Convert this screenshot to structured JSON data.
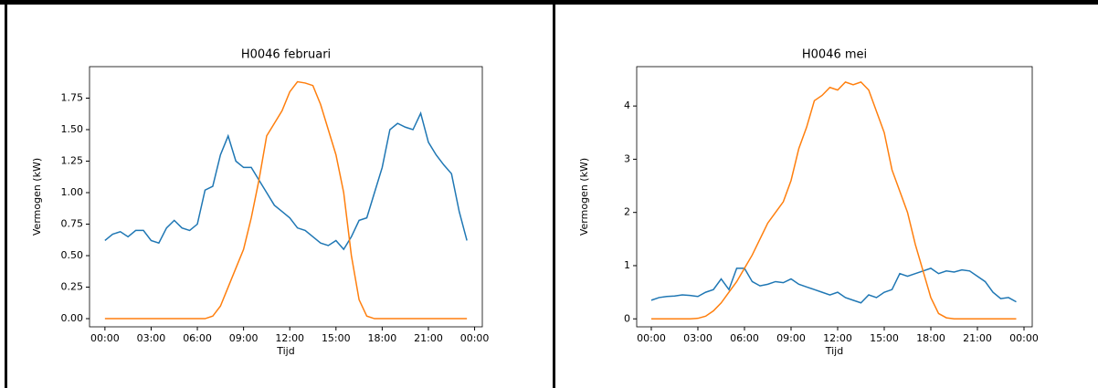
{
  "chart_data": [
    {
      "type": "line",
      "title": "H0046 februari",
      "x_label": "Tijd",
      "y_label": "Vermogen (kW)",
      "x": [
        0,
        0.5,
        1,
        1.5,
        2,
        2.5,
        3,
        3.5,
        4,
        4.5,
        5,
        5.5,
        6,
        6.5,
        7,
        7.5,
        8,
        8.5,
        9,
        9.5,
        10,
        10.5,
        11,
        11.5,
        12,
        12.5,
        13,
        13.5,
        14,
        14.5,
        15,
        15.5,
        16,
        16.5,
        17,
        17.5,
        18,
        18.5,
        19,
        19.5,
        20,
        20.5,
        21,
        21.5,
        22,
        22.5,
        23,
        23.5
      ],
      "series": [
        {
          "color": "#1f77b4",
          "values": [
            0.62,
            0.67,
            0.69,
            0.65,
            0.7,
            0.7,
            0.62,
            0.6,
            0.72,
            0.78,
            0.72,
            0.7,
            0.75,
            1.02,
            1.05,
            1.3,
            1.45,
            1.25,
            1.2,
            1.2,
            1.1,
            1.0,
            0.9,
            0.85,
            0.8,
            0.72,
            0.7,
            0.65,
            0.6,
            0.58,
            0.62,
            0.55,
            0.65,
            0.78,
            0.8,
            1.0,
            1.2,
            1.5,
            1.55,
            1.52,
            1.5,
            1.63,
            1.4,
            1.3,
            1.22,
            1.15,
            0.85,
            0.62
          ]
        },
        {
          "color": "#ff7f0e",
          "values": [
            0,
            0,
            0,
            0,
            0,
            0,
            0,
            0,
            0,
            0,
            0,
            0,
            0,
            0,
            0.02,
            0.1,
            0.25,
            0.4,
            0.55,
            0.8,
            1.1,
            1.45,
            1.55,
            1.65,
            1.8,
            1.88,
            1.87,
            1.85,
            1.7,
            1.5,
            1.3,
            1.0,
            0.5,
            0.15,
            0.02,
            0,
            0,
            0,
            0,
            0,
            0,
            0,
            0,
            0,
            0,
            0,
            0,
            0
          ]
        }
      ],
      "xlim": [
        -1.0,
        24.5
      ],
      "ylim": [
        -0.065,
        2.0
      ],
      "xticks": [
        {
          "value": 0,
          "label": "00:00"
        },
        {
          "value": 3,
          "label": "03:00"
        },
        {
          "value": 6,
          "label": "06:00"
        },
        {
          "value": 9,
          "label": "09:00"
        },
        {
          "value": 12,
          "label": "12:00"
        },
        {
          "value": 15,
          "label": "15:00"
        },
        {
          "value": 18,
          "label": "18:00"
        },
        {
          "value": 21,
          "label": "21:00"
        },
        {
          "value": 24,
          "label": "00:00"
        }
      ],
      "yticks": [
        {
          "value": 0,
          "label": "0.00"
        },
        {
          "value": 0.25,
          "label": "0.25"
        },
        {
          "value": 0.5,
          "label": "0.50"
        },
        {
          "value": 0.75,
          "label": "0.75"
        },
        {
          "value": 1,
          "label": "1.00"
        },
        {
          "value": 1.25,
          "label": "1.25"
        },
        {
          "value": 1.5,
          "label": "1.50"
        },
        {
          "value": 1.75,
          "label": "1.75"
        }
      ]
    },
    {
      "type": "line",
      "title": "H0046 mei",
      "x_label": "Tijd",
      "y_label": "Vermogen (kW)",
      "x": [
        0,
        0.5,
        1,
        1.5,
        2,
        2.5,
        3,
        3.5,
        4,
        4.5,
        5,
        5.5,
        6,
        6.5,
        7,
        7.5,
        8,
        8.5,
        9,
        9.5,
        10,
        10.5,
        11,
        11.5,
        12,
        12.5,
        13,
        13.5,
        14,
        14.5,
        15,
        15.5,
        16,
        16.5,
        17,
        17.5,
        18,
        18.5,
        19,
        19.5,
        20,
        20.5,
        21,
        21.5,
        22,
        22.5,
        23,
        23.5
      ],
      "series": [
        {
          "color": "#1f77b4",
          "values": [
            0.35,
            0.4,
            0.42,
            0.43,
            0.45,
            0.44,
            0.42,
            0.5,
            0.55,
            0.75,
            0.55,
            0.95,
            0.95,
            0.7,
            0.62,
            0.65,
            0.7,
            0.68,
            0.75,
            0.65,
            0.6,
            0.55,
            0.5,
            0.45,
            0.5,
            0.4,
            0.35,
            0.3,
            0.45,
            0.4,
            0.5,
            0.55,
            0.85,
            0.8,
            0.85,
            0.9,
            0.95,
            0.85,
            0.9,
            0.88,
            0.92,
            0.9,
            0.8,
            0.7,
            0.5,
            0.38,
            0.4,
            0.32
          ]
        },
        {
          "color": "#ff7f0e",
          "values": [
            0,
            0,
            0,
            0,
            0,
            0,
            0.01,
            0.05,
            0.15,
            0.3,
            0.5,
            0.7,
            0.95,
            1.2,
            1.5,
            1.8,
            2.0,
            2.2,
            2.6,
            3.2,
            3.6,
            4.1,
            4.2,
            4.35,
            4.3,
            4.45,
            4.4,
            4.45,
            4.3,
            3.9,
            3.5,
            2.8,
            2.4,
            2.0,
            1.4,
            0.9,
            0.4,
            0.1,
            0.02,
            0,
            0,
            0,
            0,
            0,
            0,
            0,
            0,
            0
          ]
        }
      ],
      "xlim": [
        -0.94,
        24.53
      ],
      "ylim": [
        -0.15,
        4.74
      ],
      "xticks": [
        {
          "value": 0,
          "label": "00:00"
        },
        {
          "value": 3,
          "label": "03:00"
        },
        {
          "value": 6,
          "label": "06:00"
        },
        {
          "value": 9,
          "label": "09:00"
        },
        {
          "value": 12,
          "label": "12:00"
        },
        {
          "value": 15,
          "label": "15:00"
        },
        {
          "value": 18,
          "label": "18:00"
        },
        {
          "value": 21,
          "label": "21:00"
        },
        {
          "value": 24,
          "label": "00:00"
        }
      ],
      "yticks": [
        0,
        1,
        2,
        3,
        4
      ]
    }
  ]
}
